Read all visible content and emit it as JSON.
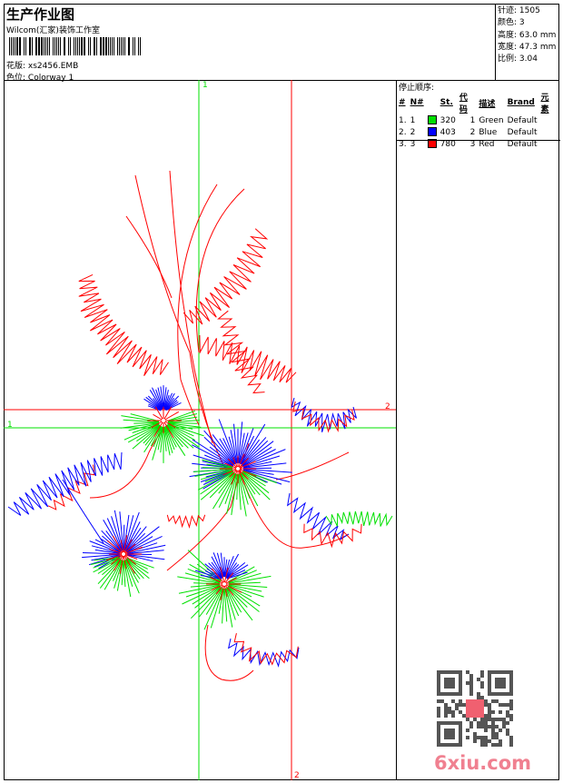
{
  "header": {
    "title": "生产作业图",
    "company": "Wilcom(汇家)装饰工作室",
    "design_label": "花版:",
    "design_value": "xs2456.EMB",
    "colorway_label": "色位:",
    "colorway_value": "Colorway 1"
  },
  "stats": [
    {
      "label": "针迹:",
      "value": "1505"
    },
    {
      "label": "颜色:",
      "value": "3"
    },
    {
      "label": "高度:",
      "value": "63.0 mm"
    },
    {
      "label": "宽度:",
      "value": "47.3 mm"
    },
    {
      "label": "比例:",
      "value": "3.04"
    }
  ],
  "stop_sequence": {
    "title": "停止顺序:",
    "columns": [
      "#",
      "N#",
      "",
      "St.",
      "代码",
      "描述",
      "Brand",
      "元素"
    ],
    "rows": [
      {
        "idx": "1.",
        "n": "1",
        "color": "#00e000",
        "st": "320",
        "code": "1",
        "desc": "Green",
        "brand": "Default"
      },
      {
        "idx": "2.",
        "n": "2",
        "color": "#0000ff",
        "st": "403",
        "code": "2",
        "desc": "Blue",
        "brand": "Default"
      },
      {
        "idx": "3.",
        "n": "3",
        "color": "#ff0000",
        "st": "780",
        "code": "3",
        "desc": "Red",
        "brand": "Default"
      }
    ]
  },
  "guides": {
    "v1": "1",
    "v2": "2",
    "h1": "1",
    "h2": "2"
  },
  "watermark": "6xiu.com"
}
